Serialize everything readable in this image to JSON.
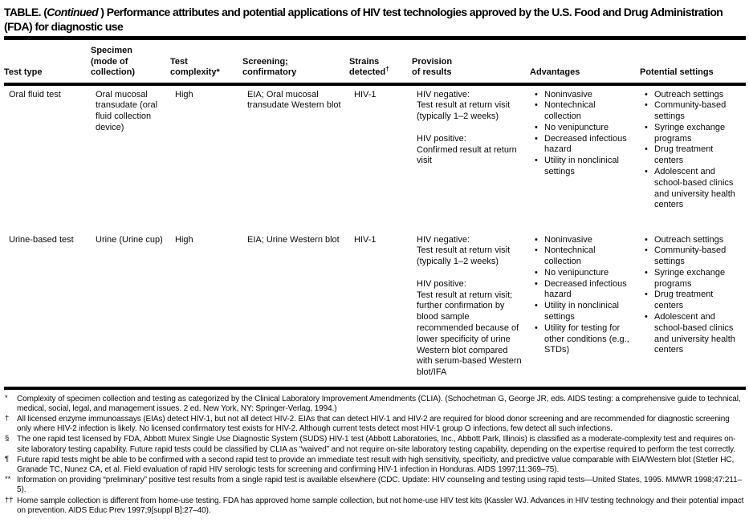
{
  "glyphs": {
    "bullet": "•"
  },
  "title": {
    "prefix": "TABLE. (",
    "continued": "Continued",
    "suffix": " ) Performance attributes and potential applications of HIV test technologies approved by the U.S. Food and Drug Administration (FDA) for diagnostic use"
  },
  "columns": [
    {
      "label": "Test type"
    },
    {
      "label": "Specimen\n(mode of\ncollection)"
    },
    {
      "label": "Test\ncomplexity*"
    },
    {
      "label": "Screening;\nconfirmatory"
    },
    {
      "label": "Strains\ndetected",
      "marker": "†"
    },
    {
      "label": "Provision\nof results"
    },
    {
      "label": "Advantages"
    },
    {
      "label": "Potential settings"
    }
  ],
  "rows": [
    {
      "test_type": "Oral fluid test",
      "specimen": "Oral mucosal transudate (oral fluid collection device)",
      "complexity": "High",
      "screening": "EIA; Oral mucosal transudate Western blot",
      "strains": "HIV-1",
      "provision": [
        {
          "label": "HIV negative:",
          "text": "Test result at return visit (typically 1–2 weeks)"
        },
        {
          "label": "HIV positive:",
          "text": "Confirmed result at return visit"
        }
      ],
      "advantages": [
        "Noninvasive",
        "Nontechnical collection",
        "No venipuncture",
        "Decreased infectious hazard",
        "Utility in nonclinical settings"
      ],
      "settings": [
        "Outreach settings",
        "Community-based settings",
        "Syringe exchange programs",
        "Drug treatment centers",
        "Adolescent and school-based clinics and university health centers"
      ]
    },
    {
      "test_type": "Urine-based test",
      "specimen": "Urine (Urine cup)",
      "complexity": "High",
      "screening": "EIA; Urine Western blot",
      "strains": "HIV-1",
      "provision": [
        {
          "label": "HIV negative:",
          "text": "Test result at return visit (typically 1–2 weeks)"
        },
        {
          "label": "HIV positive:",
          "text": "Test result at return visit; further confirmation by blood sample recommended because of lower specificity of urine Western blot compared with serum-based Western blot/IFA"
        }
      ],
      "advantages": [
        "Noninvasive",
        "Nontechnical collection",
        "No venipuncture",
        "Decreased infectious hazard",
        "Utility in nonclinical settings",
        "Utility for testing for other conditions (e.g., STDs)"
      ],
      "settings": [
        "Outreach settings",
        "Community-based settings",
        "Syringe exchange programs",
        "Drug treatment centers",
        "Adolescent and school-based clinics and university health centers"
      ]
    }
  ],
  "footnotes": [
    {
      "marker": "*",
      "text": "Complexity of specimen collection and testing as categorized by the Clinical Laboratory Improvement Amendments (CLIA). (Schochetman G, George JR, eds. AIDS testing: a comprehensive guide to technical, medical, social, legal, and management issues. 2 ed. New York, NY: Springer-Verlag, 1994.)"
    },
    {
      "marker": "†",
      "text": "All licensed enzyme immunoassays (EIAs) detect HIV-1, but not all detect HIV-2. EIAs that can detect HIV-1 and HIV-2 are required for blood donor screening and are recommended for diagnostic screening only where HIV-2 infection is likely. No licensed confirmatory test exists for HIV-2. Although current tests detect most HIV-1 group O infections, few detect all such infections."
    },
    {
      "marker": "§",
      "text": "The one rapid test licensed by FDA, Abbott Murex Single Use Diagnostic System (SUDS) HIV-1 test (Abbott Laboratories, Inc., Abbott Park, Illinois) is classified as a moderate-complexity test and requires on-site laboratory testing capability. Future rapid tests could be classified by CLIA as “waived” and not require on-site laboratory testing capability, depending on the expertise required to perform the test correctly."
    },
    {
      "marker": "¶",
      "text": "Future rapid tests might be able to be confirmed with a second rapid test to provide an immediate test result with high sensitivity, specificity, and predictive value comparable with EIA/Western blot (Stetler HC, Granade TC, Nunez CA, et al. Field evaluation of rapid HIV serologic tests for screening and confirming HIV-1 infection in Honduras. AIDS 1997;11:369–75)."
    },
    {
      "marker": "**",
      "text": "Information on providing “preliminary” positive test results from a single rapid test is available elsewhere (CDC. Update: HIV counseling and testing using rapid tests—United States, 1995. MMWR 1998;47:211–5)."
    },
    {
      "marker": "††",
      "text": "Home sample collection is different from home-use testing. FDA has approved home sample collection, but not home-use HIV test kits (Kassler WJ. Advances in HIV testing technology and their potential impact on prevention. AIDS Educ Prev 1997;9[suppl B]:27–40)."
    }
  ]
}
